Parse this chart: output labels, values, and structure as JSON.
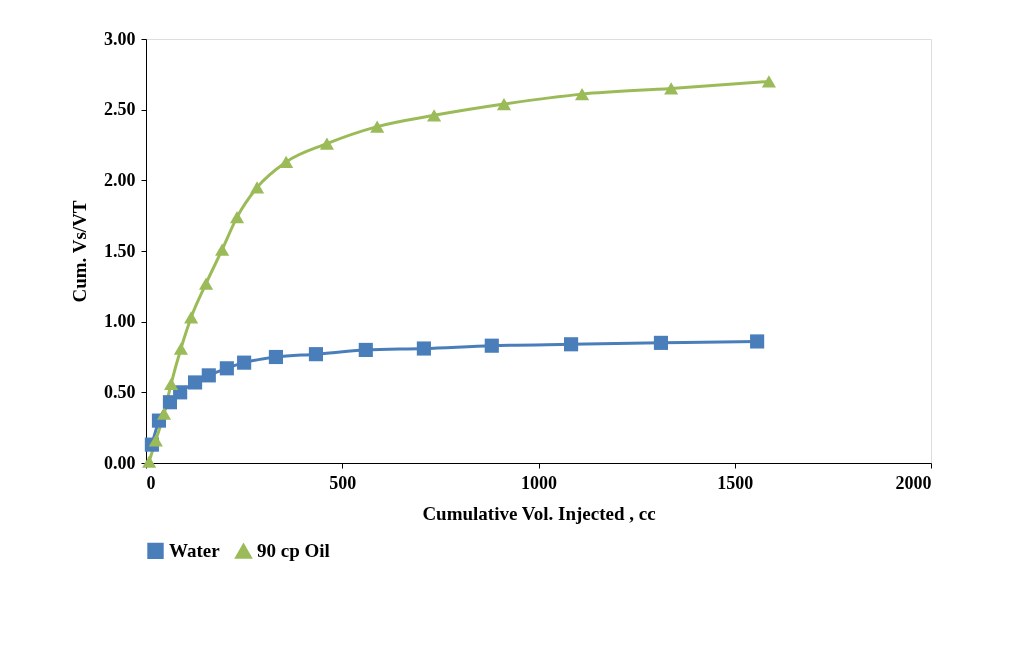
{
  "chart_data": {
    "type": "line",
    "xlabel": "Cumulative  Vol. Injected , cc",
    "ylabel": "Cum.  Vs/VT",
    "xlim": [
      0,
      2000
    ],
    "xticks": [
      0,
      500,
      1000,
      1500,
      2000
    ],
    "ylim": [
      0,
      3
    ],
    "yticks": [
      {
        "value": 0,
        "label": "0.00"
      },
      {
        "value": 0.5,
        "label": "0.50"
      },
      {
        "value": 1,
        "label": "1.00"
      },
      {
        "value": 1.5,
        "label": "1.50"
      },
      {
        "value": 2,
        "label": "2.00"
      },
      {
        "value": 2.5,
        "label": "2.50"
      },
      {
        "value": 3,
        "label": "3.00"
      }
    ],
    "grid": false,
    "legend": "bottom",
    "line_style": "solid",
    "series": [
      {
        "name": "Water",
        "color": "#4a7ebb",
        "marker": "square",
        "x": [
          15,
          33,
          61,
          87,
          125,
          160,
          206,
          250,
          331,
          433,
          560,
          708,
          881,
          1083,
          1312,
          1557
        ],
        "values": [
          0.13,
          0.3,
          0.43,
          0.5,
          0.57,
          0.62,
          0.67,
          0.71,
          0.75,
          0.77,
          0.8,
          0.81,
          0.83,
          0.84,
          0.85,
          0.86
        ]
      },
      {
        "name": "90 cp Oil",
        "color": "#9bbb59",
        "marker": "triangle",
        "x": [
          8,
          25,
          46,
          64,
          89,
          115,
          153,
          194,
          232,
          283,
          357,
          461,
          589,
          734,
          912,
          1111,
          1338,
          1587
        ],
        "values": [
          0.01,
          0.16,
          0.35,
          0.56,
          0.81,
          1.03,
          1.27,
          1.51,
          1.74,
          1.95,
          2.13,
          2.26,
          2.38,
          2.46,
          2.54,
          2.61,
          2.65,
          2.7
        ]
      }
    ]
  }
}
